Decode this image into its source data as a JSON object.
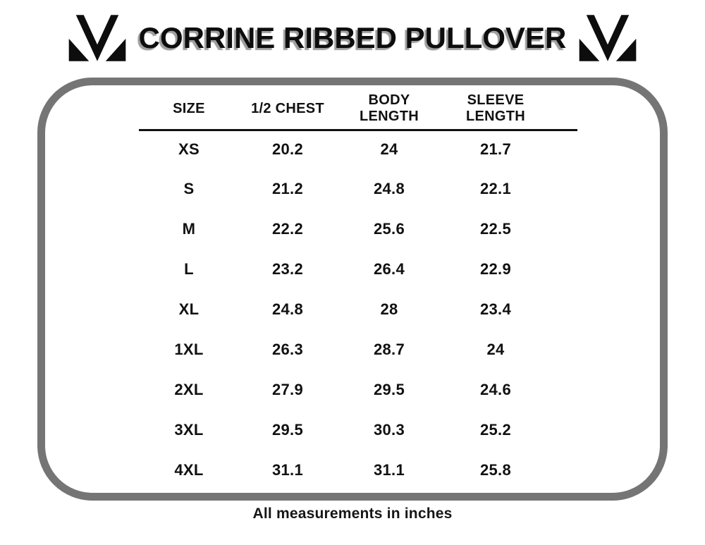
{
  "page": {
    "title": "CORRINE RIBBED PULLOVER",
    "footnote": "All measurements in inches",
    "icons": {
      "left": "brand-m-logo",
      "right": "brand-m-logo"
    },
    "colors": {
      "text": "#111111",
      "frame_border": "#757575",
      "title_shadow": "#9e9e9e",
      "background": "#ffffff"
    }
  },
  "chart_data": {
    "type": "table",
    "title": "CORRINE RIBBED PULLOVER",
    "columns": [
      "SIZE",
      "1/2 CHEST",
      "BODY LENGTH",
      "SLEEVE LENGTH"
    ],
    "rows": [
      [
        "XS",
        "20.2",
        "24",
        "21.7"
      ],
      [
        "S",
        "21.2",
        "24.8",
        "22.1"
      ],
      [
        "M",
        "22.2",
        "25.6",
        "22.5"
      ],
      [
        "L",
        "23.2",
        "26.4",
        "22.9"
      ],
      [
        "XL",
        "24.8",
        "28",
        "23.4"
      ],
      [
        "1XL",
        "26.3",
        "28.7",
        "24"
      ],
      [
        "2XL",
        "27.9",
        "29.5",
        "24.6"
      ],
      [
        "3XL",
        "29.5",
        "30.3",
        "25.2"
      ],
      [
        "4XL",
        "31.1",
        "31.1",
        "25.8"
      ]
    ],
    "note": "All measurements in inches",
    "units": "inches"
  }
}
